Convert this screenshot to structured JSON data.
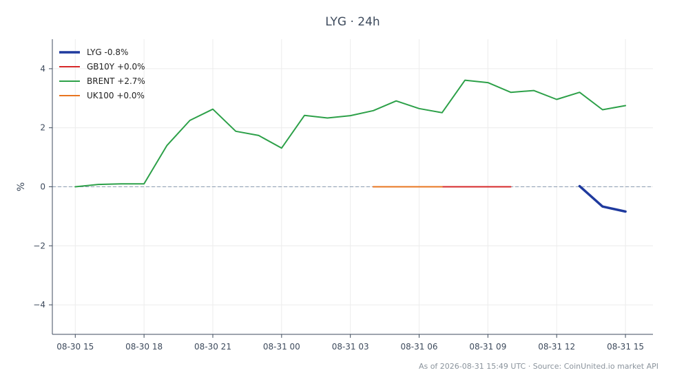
{
  "footer": "As of 2026-08-31 15:49 UTC · Source: CoinUnited.io market API",
  "chart_data": {
    "type": "line",
    "title": "LYG · 24h",
    "ylabel": "%",
    "xlabel": "",
    "ylim": [
      -5,
      5
    ],
    "yticks": [
      -4,
      -2,
      0,
      2,
      4
    ],
    "ytick_labels": [
      "−4",
      "−2",
      "0",
      "2",
      "4"
    ],
    "xlim": [
      "08-30 14:00",
      "08-31 16:12"
    ],
    "xticks": [
      "08-30 15:00",
      "08-30 18:00",
      "08-30 21:00",
      "08-31 00:00",
      "08-31 03:00",
      "08-31 06:00",
      "08-31 09:00",
      "08-31 12:00",
      "08-31 15:00"
    ],
    "xtick_labels": [
      "08-30 15",
      "08-30 18",
      "08-30 21",
      "08-31 00",
      "08-31 03",
      "08-31 06",
      "08-31 09",
      "08-31 12",
      "08-31 15"
    ],
    "grid": true,
    "zero_line": true,
    "legend_position": "top-left",
    "series": [
      {
        "name": "LYG -0.8%",
        "color": "#1f3a9e",
        "width": 3.5,
        "x": [
          "08-31 13:00",
          "08-31 14:00",
          "08-31 15:00"
        ],
        "y": [
          0.02,
          -0.67,
          -0.84
        ]
      },
      {
        "name": "GB10Y +0.0%",
        "color": "#d62728",
        "width": 2,
        "x": [
          "08-31 04:00",
          "08-31 05:00",
          "08-31 06:00",
          "08-31 07:00",
          "08-31 08:00",
          "08-31 09:00",
          "08-31 10:00"
        ],
        "y": [
          0,
          0,
          0,
          0,
          0,
          0,
          0
        ]
      },
      {
        "name": "BRENT +2.7%",
        "color": "#2ca048",
        "width": 2,
        "x": [
          "08-30 15:00",
          "08-30 16:00",
          "08-30 17:00",
          "08-30 18:00",
          "08-30 19:00",
          "08-30 20:00",
          "08-30 21:00",
          "08-30 22:00",
          "08-30 23:00",
          "08-31 00:00",
          "08-31 01:00",
          "08-31 02:00",
          "08-31 03:00",
          "08-31 04:00",
          "08-31 05:00",
          "08-31 06:00",
          "08-31 07:00",
          "08-31 08:00",
          "08-31 09:00",
          "08-31 10:00",
          "08-31 11:00",
          "08-31 12:00",
          "08-31 13:00",
          "08-31 14:00",
          "08-31 15:00"
        ],
        "y": [
          0.0,
          0.08,
          0.1,
          0.1,
          1.4,
          2.25,
          2.63,
          1.88,
          1.74,
          1.31,
          2.42,
          2.33,
          2.41,
          2.58,
          2.91,
          2.65,
          2.51,
          3.61,
          3.53,
          3.2,
          3.26,
          2.96,
          3.2,
          2.61,
          2.75
        ]
      },
      {
        "name": "UK100 +0.0%",
        "color": "#e8741f",
        "width": 2,
        "x": [
          "08-31 04:00",
          "08-31 05:00",
          "08-31 06:00",
          "08-31 07:00"
        ],
        "y": [
          0,
          0,
          0,
          0
        ]
      }
    ]
  }
}
